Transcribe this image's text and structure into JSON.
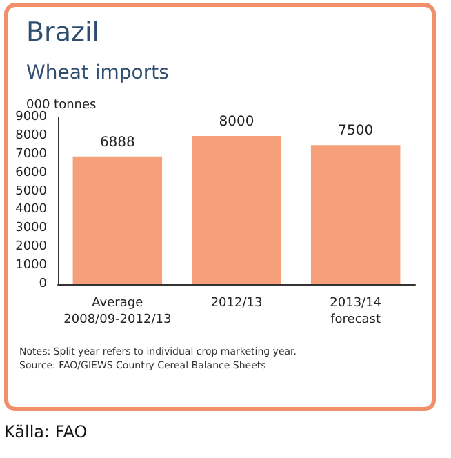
{
  "chart_data": {
    "type": "bar",
    "title": "Brazil",
    "subtitle": "Wheat imports",
    "ylabel": "000 tonnes",
    "categories": [
      "Average\n2008/09-2012/13",
      "2012/13",
      "2013/14\nforecast"
    ],
    "values": [
      6888,
      8000,
      7500
    ],
    "color": "#f5a07a",
    "ylim": [
      0,
      9000
    ],
    "yticks": [
      0,
      1000,
      2000,
      3000,
      4000,
      5000,
      6000,
      7000,
      8000,
      9000
    ],
    "grid": false,
    "data_labels": true,
    "annotations": [
      "Notes: Split year refers to individual crop marketing year.",
      "Source: FAO/GIEWS Country Cereal Balance Sheets",
      "Källa: FAO"
    ]
  }
}
